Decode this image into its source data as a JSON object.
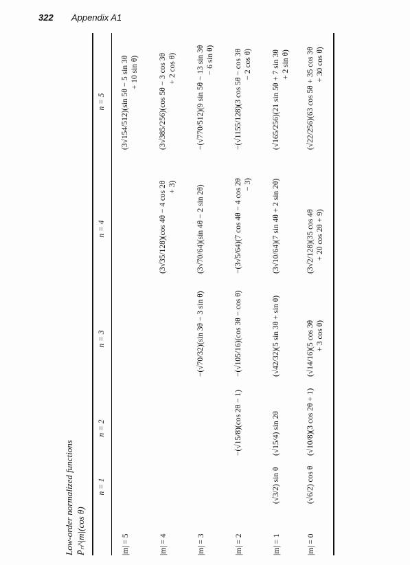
{
  "header": {
    "page_number": "322",
    "section_title": "Appendix A1"
  },
  "table": {
    "caption_line1": "Low-order normalized functions",
    "caption_line2": "P̄ₙ^|m|(cos θ)",
    "columns": [
      "n = 1",
      "n = 2",
      "n = 3",
      "n = 4",
      "n = 5"
    ],
    "rows": [
      {
        "label": "|m| = 5",
        "n1": "",
        "n2": "",
        "n3": "",
        "n4": "",
        "n5": [
          "(3√154/512)(sin 5θ − 5 sin 3θ",
          "+ 10 sin θ)"
        ]
      },
      {
        "label": "|m| = 4",
        "n1": "",
        "n2": "",
        "n3": "",
        "n4": [
          "(3√35/128)(cos 4θ − 4 cos 2θ",
          "+ 3)"
        ],
        "n5": [
          "(3√385/256)(cos 5θ − 3 cos 3θ",
          "+ 2 cos θ)"
        ]
      },
      {
        "label": "|m| = 3",
        "n1": "",
        "n2": "",
        "n3": [
          "−(√70/32)(sin 3θ − 3 sin θ)",
          ""
        ],
        "n4": [
          "(3√70/64)(sin 4θ − 2 sin 2θ)",
          ""
        ],
        "n5": [
          "−(√770/512)(9 sin 5θ − 13 sin 3θ",
          "− 6 sin θ)"
        ]
      },
      {
        "label": "|m| = 2",
        "n1": "",
        "n2": [
          "−(√15/8)(cos 2θ − 1)",
          ""
        ],
        "n3": [
          "−(√105/16)(cos 3θ − cos θ)",
          ""
        ],
        "n4": [
          "−(3√5/64)(7 cos 4θ − 4 cos 2θ",
          "− 3)"
        ],
        "n5": [
          "−(√1155/128)(3 cos 5θ − cos 3θ",
          "− 2 cos θ)"
        ]
      },
      {
        "label": "|m| = 1",
        "n1": [
          "(√3/2) sin θ",
          ""
        ],
        "n2": [
          "(√15/4) sin 2θ",
          ""
        ],
        "n3": [
          "(√42/32)(5 sin 3θ + sin θ)",
          ""
        ],
        "n4": [
          "(3√10/64)(7 sin 4θ + 2 sin 2θ)",
          ""
        ],
        "n5": [
          "(√165/256)(21 sin 5θ + 7 sin 3θ",
          "+ 2 sin θ)"
        ]
      },
      {
        "label": "|m| = 0",
        "n1": [
          "(√6/2) cos θ",
          ""
        ],
        "n2": [
          "(√10/8)(3 cos 2θ + 1)",
          ""
        ],
        "n3": [
          "(√14/16)(5 cos 3θ",
          "+ 3 cos θ)"
        ],
        "n4": [
          "(3√2/128)(35 cos 4θ",
          "+ 20 cos 2θ + 9)"
        ],
        "n5": [
          "(√22/256)(63 cos 5θ + 35 cos 3θ",
          "+ 30 cos θ)"
        ]
      }
    ]
  }
}
